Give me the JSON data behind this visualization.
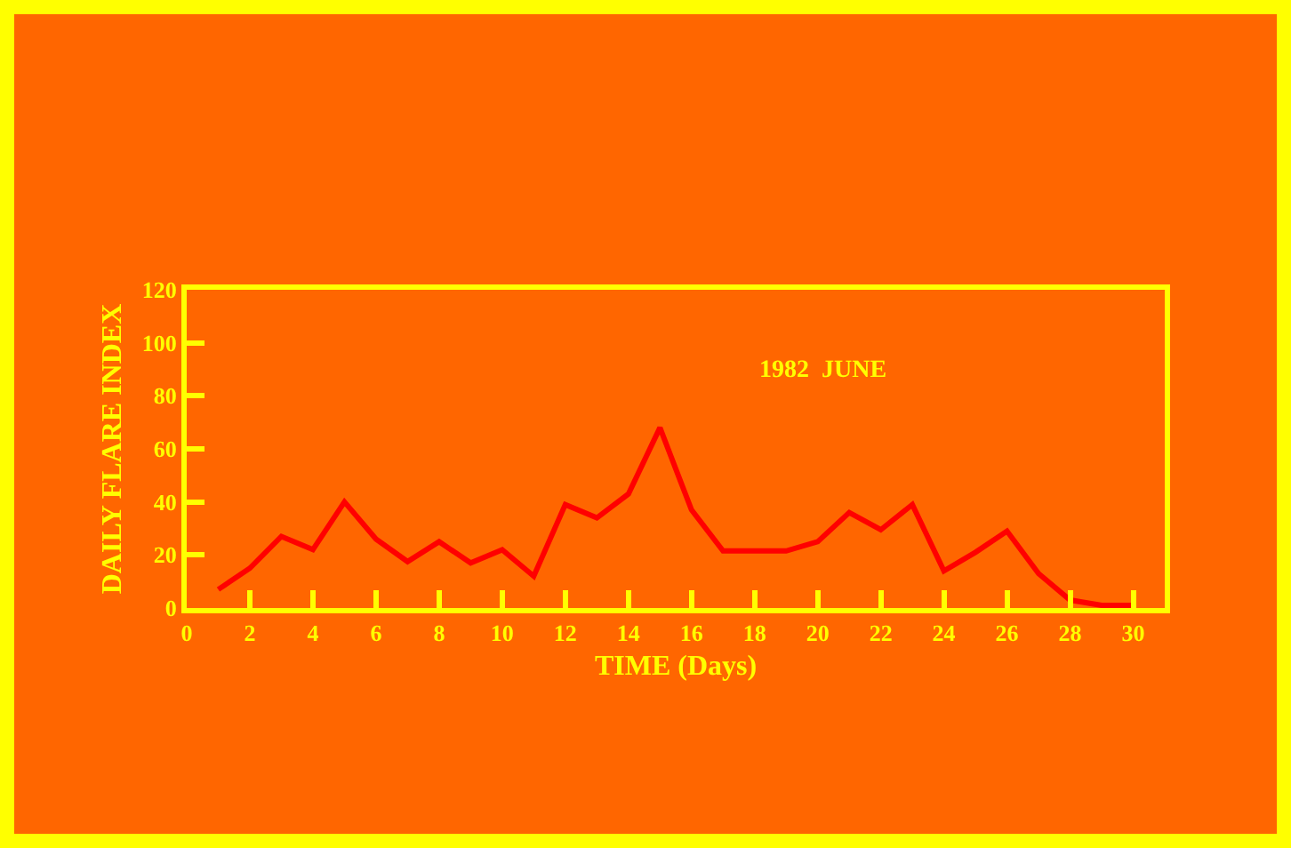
{
  "chart_data": {
    "type": "line",
    "xlabel": "TIME (Days)",
    "ylabel": "DAILY FLARE INDEX",
    "annotations": [
      "1982  JUNE"
    ],
    "x": [
      1,
      2,
      3,
      4,
      5,
      6,
      7,
      8,
      9,
      10,
      11,
      12,
      13,
      14,
      15,
      16,
      17,
      18,
      19,
      20,
      21,
      22,
      23,
      24,
      25,
      26,
      27,
      28,
      29,
      30
    ],
    "series": [
      {
        "color": "#ff0000",
        "values": [
          7,
          15,
          27,
          22,
          40,
          26,
          17.5,
          25,
          17,
          22,
          12,
          39,
          34,
          43,
          68,
          37,
          21.5,
          21.5,
          21.5,
          25,
          36,
          29.5,
          39,
          14,
          21,
          29,
          13,
          3,
          1,
          1
        ]
      }
    ],
    "xlim": [
      0,
      31
    ],
    "xticks": [
      0,
      2,
      4,
      6,
      8,
      10,
      12,
      14,
      16,
      18,
      20,
      22,
      24,
      26,
      28,
      30
    ],
    "ylim": [
      0,
      120
    ],
    "yticks": [
      0,
      20,
      40,
      60,
      80,
      100,
      120
    ],
    "grid": false,
    "marker": "none",
    "line_style": "solid"
  }
}
